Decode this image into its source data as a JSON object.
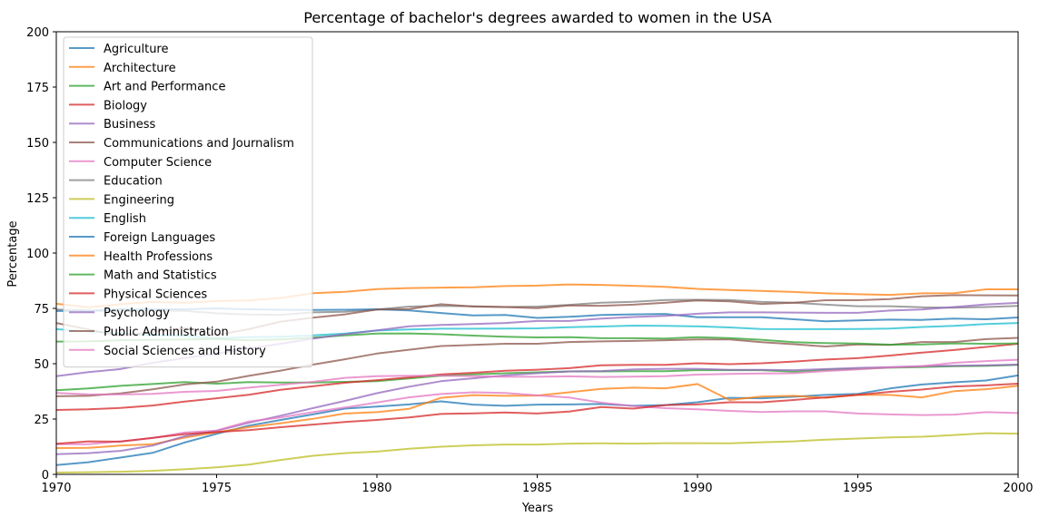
{
  "chart_data": {
    "type": "line",
    "title": "Percentage of bachelor's degrees awarded to women in the USA",
    "xlabel": "Years",
    "ylabel": "Percentage",
    "xlim": [
      1970,
      2000
    ],
    "ylim": [
      0,
      200
    ],
    "xticks": [
      1970,
      1975,
      1980,
      1985,
      1990,
      1995,
      2000
    ],
    "yticks": [
      0,
      25,
      50,
      75,
      100,
      125,
      150,
      175,
      200
    ],
    "grid": false,
    "legend_position": "upper-left",
    "x": [
      1970,
      1971,
      1972,
      1973,
      1974,
      1975,
      1976,
      1977,
      1978,
      1979,
      1980,
      1981,
      1982,
      1983,
      1984,
      1985,
      1986,
      1987,
      1988,
      1989,
      1990,
      1991,
      1992,
      1993,
      1994,
      1995,
      1996,
      1997,
      1998,
      1999,
      2000
    ],
    "series": [
      {
        "name": "Agriculture",
        "color": "#1f77b4",
        "values": [
          4.2,
          5.5,
          7.6,
          9.7,
          14.4,
          18.3,
          22.0,
          24.6,
          27.1,
          29.7,
          30.6,
          31.6,
          33.0,
          31.5,
          31.0,
          31.5,
          31.6,
          31.8,
          31.0,
          31.3,
          32.6,
          34.6,
          34.4,
          35.1,
          35.9,
          36.4,
          38.8,
          40.6,
          41.6,
          42.4,
          44.7
        ]
      },
      {
        "name": "Architecture",
        "color": "#ff7f0e",
        "values": [
          11.9,
          12.0,
          13.0,
          13.6,
          16.6,
          19.0,
          21.3,
          23.1,
          25.1,
          27.5,
          28.1,
          29.6,
          34.6,
          35.8,
          35.5,
          35.6,
          37.1,
          38.6,
          39.2,
          38.9,
          40.8,
          33.6,
          35.2,
          35.5,
          34.6,
          36.0,
          35.9,
          34.8,
          37.6,
          38.5,
          40.0
        ]
      },
      {
        "name": "Art and Performance",
        "color": "#2ca02c",
        "values": [
          38.0,
          38.8,
          40.0,
          40.8,
          41.7,
          41.0,
          41.7,
          41.5,
          41.5,
          41.8,
          42.1,
          43.3,
          44.6,
          45.2,
          45.7,
          46.1,
          46.5,
          46.5,
          46.6,
          46.6,
          47.1,
          47.1,
          47.1,
          46.4,
          47.2,
          47.7,
          48.2,
          48.5,
          48.9,
          49.0,
          49.5
        ]
      },
      {
        "name": "Biology",
        "color": "#d62728",
        "values": [
          29.1,
          29.4,
          30.0,
          31.1,
          32.9,
          34.4,
          36.0,
          38.2,
          39.8,
          41.4,
          42.6,
          43.8,
          45.2,
          45.9,
          46.8,
          47.3,
          48.0,
          49.3,
          49.5,
          49.5,
          50.2,
          49.8,
          50.2,
          51.0,
          51.9,
          52.5,
          53.7,
          55.0,
          56.2,
          57.6,
          59.0
        ]
      },
      {
        "name": "Business",
        "color": "#9467bd",
        "values": [
          9.1,
          9.6,
          10.6,
          13.0,
          17.2,
          19.7,
          23.3,
          26.5,
          29.9,
          33.2,
          36.7,
          39.6,
          42.1,
          43.4,
          44.7,
          45.7,
          46.5,
          46.7,
          47.4,
          47.7,
          47.7,
          47.2,
          47.2,
          47.1,
          47.6,
          48.1,
          48.5,
          48.9,
          49.1,
          49.3,
          49.6
        ]
      },
      {
        "name": "Communications and Journalism",
        "color": "#8c564b",
        "values": [
          35.3,
          35.5,
          36.6,
          38.4,
          40.6,
          41.9,
          44.5,
          46.9,
          49.6,
          52.0,
          54.6,
          56.3,
          58.0,
          58.5,
          59.0,
          59.0,
          59.8,
          60.1,
          60.3,
          60.6,
          61.0,
          61.0,
          59.7,
          58.8,
          57.8,
          58.7,
          58.5,
          59.8,
          59.8,
          61.1,
          61.7
        ]
      },
      {
        "name": "Computer Science",
        "color": "#e377c2",
        "values": [
          13.6,
          13.6,
          14.9,
          16.4,
          18.9,
          19.8,
          23.9,
          25.7,
          28.1,
          30.2,
          32.5,
          34.8,
          36.3,
          37.1,
          36.8,
          35.7,
          34.7,
          32.4,
          30.8,
          29.9,
          29.4,
          28.7,
          28.2,
          28.5,
          28.5,
          27.5,
          27.1,
          26.8,
          27.0,
          28.1,
          27.7
        ]
      },
      {
        "name": "Education",
        "color": "#7f7f7f",
        "values": [
          74.5,
          74.1,
          73.6,
          74.1,
          73.9,
          72.8,
          72.2,
          72.1,
          73.2,
          73.5,
          74.5,
          75.8,
          76.1,
          76.0,
          75.6,
          75.8,
          76.6,
          77.6,
          78.0,
          78.8,
          78.9,
          78.8,
          77.9,
          77.6,
          76.7,
          76.0,
          76.0,
          75.5,
          75.3,
          75.6,
          76.1
        ]
      },
      {
        "name": "Engineering",
        "color": "#bcbd22",
        "values": [
          0.8,
          1.0,
          1.2,
          1.6,
          2.3,
          3.2,
          4.4,
          6.5,
          8.4,
          9.6,
          10.3,
          11.6,
          12.5,
          13.1,
          13.5,
          13.5,
          13.9,
          14.0,
          13.9,
          14.1,
          14.1,
          14.0,
          14.5,
          14.9,
          15.7,
          16.2,
          16.7,
          17.0,
          17.8,
          18.6,
          18.4
        ]
      },
      {
        "name": "English",
        "color": "#17becf",
        "values": [
          65.6,
          64.6,
          63.6,
          62.9,
          62.5,
          61.6,
          62.0,
          62.2,
          62.8,
          63.6,
          65.0,
          65.5,
          65.8,
          65.8,
          65.9,
          66.0,
          66.5,
          66.8,
          67.2,
          67.1,
          66.9,
          66.4,
          65.7,
          65.6,
          65.6,
          65.7,
          65.9,
          66.6,
          67.1,
          67.9,
          68.4
        ]
      },
      {
        "name": "Foreign Languages",
        "color": "#1f77b4",
        "values": [
          73.8,
          73.9,
          74.6,
          74.6,
          74.6,
          75.0,
          74.6,
          74.4,
          74.3,
          74.4,
          74.6,
          74.1,
          72.9,
          71.8,
          72.0,
          70.7,
          71.2,
          72.0,
          72.3,
          72.5,
          71.0,
          71.0,
          71.0,
          70.1,
          69.2,
          69.6,
          69.9,
          69.8,
          70.4,
          70.1,
          70.9
        ]
      },
      {
        "name": "Health Professions",
        "color": "#ff7f0e",
        "values": [
          77.1,
          75.5,
          76.9,
          77.9,
          77.6,
          78.3,
          78.6,
          79.7,
          81.9,
          82.5,
          83.7,
          84.2,
          84.4,
          84.5,
          85.1,
          85.3,
          85.8,
          85.6,
          85.2,
          84.7,
          83.8,
          83.3,
          82.9,
          82.4,
          81.8,
          81.4,
          81.1,
          81.8,
          81.9,
          83.6,
          83.6
        ]
      },
      {
        "name": "Math and Statistics",
        "color": "#2ca02c",
        "values": [
          60.0,
          60.1,
          60.6,
          60.8,
          61.0,
          61.2,
          60.6,
          61.0,
          61.8,
          62.8,
          63.6,
          63.7,
          63.3,
          62.7,
          62.2,
          61.9,
          62.0,
          61.5,
          61.5,
          61.4,
          62.0,
          61.6,
          60.8,
          59.7,
          59.3,
          59.1,
          58.6,
          58.7,
          59.2,
          59.0,
          59.2
        ]
      },
      {
        "name": "Physical Sciences",
        "color": "#d62728",
        "values": [
          13.8,
          14.9,
          14.8,
          16.5,
          18.2,
          19.1,
          20.0,
          21.3,
          22.5,
          23.7,
          24.6,
          25.7,
          27.3,
          27.6,
          28.0,
          27.5,
          28.4,
          30.4,
          29.7,
          31.3,
          31.6,
          32.6,
          32.6,
          33.6,
          34.8,
          35.9,
          37.3,
          38.3,
          39.7,
          40.2,
          41.0
        ]
      },
      {
        "name": "Psychology",
        "color": "#9467bd",
        "values": [
          44.4,
          46.2,
          47.6,
          50.4,
          52.6,
          54.5,
          56.9,
          59.0,
          61.3,
          63.3,
          65.1,
          66.9,
          67.5,
          67.9,
          68.4,
          69.3,
          69.3,
          70.4,
          71.1,
          71.6,
          72.6,
          73.2,
          73.2,
          73.1,
          73.0,
          73.0,
          74.0,
          74.5,
          75.6,
          76.8,
          77.5
        ]
      },
      {
        "name": "Public Administration",
        "color": "#8c564b",
        "values": [
          68.4,
          65.5,
          62.6,
          64.3,
          66.1,
          63.0,
          65.6,
          69.0,
          70.8,
          72.3,
          74.5,
          74.7,
          76.9,
          75.8,
          75.6,
          75.1,
          76.3,
          76.2,
          76.7,
          77.6,
          78.6,
          78.2,
          77.0,
          77.6,
          78.7,
          78.7,
          79.2,
          80.5,
          81.0,
          80.9,
          80.8
        ]
      },
      {
        "name": "Social Sciences and History",
        "color": "#e377c2",
        "values": [
          36.8,
          36.2,
          36.1,
          36.4,
          37.3,
          37.7,
          39.2,
          40.5,
          41.8,
          43.6,
          44.4,
          44.6,
          44.6,
          44.4,
          44.1,
          44.1,
          44.3,
          44.0,
          44.2,
          44.4,
          45.1,
          45.4,
          45.6,
          45.7,
          46.7,
          47.4,
          48.3,
          48.9,
          50.4,
          51.2,
          51.8
        ]
      }
    ]
  }
}
